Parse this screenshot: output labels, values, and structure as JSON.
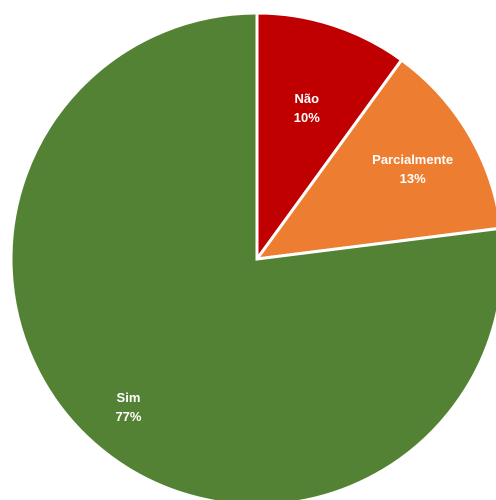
{
  "chart_data": {
    "type": "pie",
    "title": "",
    "start_angle_deg": 0,
    "direction": "clockwise",
    "slices": [
      {
        "label": "Não",
        "value": 10,
        "value_label": "10%",
        "color": "#c00000"
      },
      {
        "label": "Parcialmente",
        "value": 13,
        "value_label": "13%",
        "color": "#ed7d31"
      },
      {
        "label": "Sim",
        "value": 77,
        "value_label": "77%",
        "color": "#548235"
      }
    ]
  }
}
